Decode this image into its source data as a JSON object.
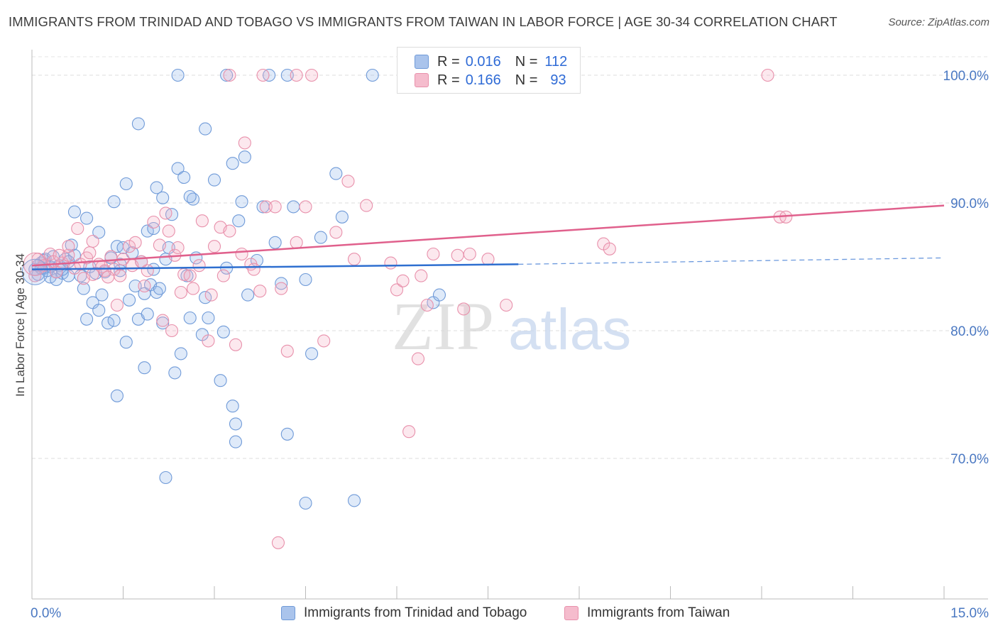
{
  "title": "IMMIGRANTS FROM TRINIDAD AND TOBAGO VS IMMIGRANTS FROM TAIWAN IN LABOR FORCE | AGE 30-34 CORRELATION CHART",
  "source": "Source: ZipAtlas.com",
  "watermark": {
    "zip": "ZIP",
    "atlas": "atlas"
  },
  "legend": {
    "rows": [
      {
        "r_label": "R =",
        "r_value": "0.016",
        "n_label": "N =",
        "n_value": "112",
        "color": "#aac4ec",
        "border": "#6f9ad8"
      },
      {
        "r_label": "R =",
        "r_value": "0.166",
        "n_label": "N =",
        "n_value": "93",
        "color": "#f5bccd",
        "border": "#e890ab"
      }
    ]
  },
  "bottom_legend": [
    {
      "label": "Immigrants from Trinidad and Tobago",
      "color": "#aac4ec",
      "border": "#6f9ad8"
    },
    {
      "label": "Immigrants from Taiwan",
      "color": "#f5bccd",
      "border": "#e890ab"
    }
  ],
  "chart_data": {
    "type": "scatter",
    "title": "IMMIGRANTS FROM TRINIDAD AND TOBAGO VS IMMIGRANTS FROM TAIWAN IN LABOR FORCE | AGE 30-34 CORRELATION CHART",
    "xlabel": "",
    "ylabel": "In Labor Force | Age 30-34",
    "xlim": [
      0,
      15
    ],
    "ylim": [
      59,
      102
    ],
    "x_tick_labels": [
      "0.0%",
      "15.0%"
    ],
    "y_ticks": [
      {
        "value": 70,
        "label": "70.0%"
      },
      {
        "value": 80,
        "label": "80.0%"
      },
      {
        "value": 90,
        "label": "90.0%"
      },
      {
        "value": 100,
        "label": "100.0%"
      }
    ],
    "grid": "horizontal-dashed",
    "series": [
      {
        "name": "Immigrants from Trinidad and Tobago",
        "color": "#6f9ad8",
        "fill": "rgba(150,185,235,0.30)",
        "line_color": "#2e6fd0",
        "trend": {
          "x": [
            0.0,
            8.0
          ],
          "y": [
            84.8,
            85.2
          ]
        },
        "trend_dashed": {
          "x": [
            8.0,
            15.0
          ],
          "y": [
            85.2,
            85.7
          ]
        },
        "points": [
          [
            0.05,
            84.8
          ],
          [
            0.1,
            84.4
          ],
          [
            0.15,
            85.3
          ],
          [
            0.2,
            84.9
          ],
          [
            0.22,
            85.6
          ],
          [
            0.3,
            84.2
          ],
          [
            0.35,
            85.8
          ],
          [
            0.4,
            84.0
          ],
          [
            0.45,
            85.1
          ],
          [
            0.5,
            84.5
          ],
          [
            0.55,
            85.6
          ],
          [
            0.6,
            84.3
          ],
          [
            0.65,
            86.7
          ],
          [
            0.7,
            85.9
          ],
          [
            0.8,
            84.3
          ],
          [
            0.85,
            83.3
          ],
          [
            0.9,
            80.9
          ],
          [
            0.95,
            85.0
          ],
          [
            1.0,
            82.2
          ],
          [
            1.05,
            84.5
          ],
          [
            1.1,
            81.6
          ],
          [
            1.15,
            82.8
          ],
          [
            1.2,
            84.6
          ],
          [
            1.25,
            80.6
          ],
          [
            1.3,
            85.7
          ],
          [
            1.35,
            80.8
          ],
          [
            1.4,
            86.6
          ],
          [
            1.45,
            85.2
          ],
          [
            1.5,
            86.5
          ],
          [
            1.55,
            79.1
          ],
          [
            1.6,
            82.4
          ],
          [
            1.65,
            86.1
          ],
          [
            1.7,
            83.5
          ],
          [
            1.75,
            80.9
          ],
          [
            1.8,
            85.4
          ],
          [
            1.85,
            82.9
          ],
          [
            1.9,
            81.3
          ],
          [
            1.95,
            83.6
          ],
          [
            2.0,
            84.8
          ],
          [
            2.05,
            83.0
          ],
          [
            2.1,
            83.3
          ],
          [
            2.15,
            80.6
          ],
          [
            2.2,
            85.6
          ],
          [
            2.25,
            86.5
          ],
          [
            2.3,
            89.1
          ],
          [
            2.35,
            76.7
          ],
          [
            2.4,
            92.7
          ],
          [
            2.45,
            78.2
          ],
          [
            2.55,
            84.3
          ],
          [
            2.6,
            81.0
          ],
          [
            2.65,
            90.3
          ],
          [
            2.7,
            85.7
          ],
          [
            2.8,
            79.7
          ],
          [
            2.85,
            82.6
          ],
          [
            2.9,
            81.0
          ],
          [
            3.0,
            91.8
          ],
          [
            3.1,
            76.1
          ],
          [
            3.15,
            79.9
          ],
          [
            3.2,
            84.9
          ],
          [
            3.3,
            74.1
          ],
          [
            3.35,
            72.7
          ],
          [
            3.4,
            88.6
          ],
          [
            3.45,
            90.1
          ],
          [
            3.5,
            93.6
          ],
          [
            3.55,
            82.8
          ],
          [
            3.7,
            85.5
          ],
          [
            3.8,
            89.7
          ],
          [
            4.0,
            86.9
          ],
          [
            4.1,
            83.7
          ],
          [
            4.2,
            71.9
          ],
          [
            4.3,
            89.7
          ],
          [
            4.5,
            84.0
          ],
          [
            4.6,
            78.2
          ],
          [
            4.75,
            87.3
          ],
          [
            5.0,
            92.3
          ],
          [
            5.1,
            88.9
          ],
          [
            5.6,
            100.0
          ],
          [
            6.6,
            82.2
          ],
          [
            6.7,
            82.8
          ],
          [
            1.1,
            87.7
          ],
          [
            1.35,
            90.1
          ],
          [
            1.55,
            91.5
          ],
          [
            1.75,
            96.2
          ],
          [
            1.9,
            87.8
          ],
          [
            2.05,
            91.2
          ],
          [
            2.15,
            90.4
          ],
          [
            2.4,
            100.0
          ],
          [
            2.5,
            92.0
          ],
          [
            2.6,
            90.5
          ],
          [
            2.85,
            95.8
          ],
          [
            3.2,
            100.0
          ],
          [
            3.3,
            93.1
          ],
          [
            3.35,
            71.3
          ],
          [
            4.2,
            100.0
          ],
          [
            4.5,
            66.5
          ],
          [
            5.3,
            66.7
          ],
          [
            2.2,
            68.5
          ],
          [
            1.4,
            74.9
          ],
          [
            1.85,
            77.1
          ],
          [
            0.7,
            89.3
          ],
          [
            0.9,
            88.8
          ],
          [
            1.45,
            84.7
          ],
          [
            0.4,
            84.6
          ],
          [
            0.5,
            84.8
          ],
          [
            0.6,
            85.4
          ],
          [
            0.3,
            85.0
          ],
          [
            0.25,
            84.7
          ],
          [
            0.2,
            85.5
          ],
          [
            0.15,
            84.9
          ],
          [
            0.1,
            85.1
          ],
          [
            2.0,
            88.0
          ],
          [
            3.9,
            100.0
          ]
        ]
      },
      {
        "name": "Immigrants from Taiwan",
        "color": "#e890ab",
        "fill": "rgba(245,180,200,0.30)",
        "line_color": "#e0608c",
        "trend": {
          "x": [
            0.0,
            15.0
          ],
          "y": [
            85.1,
            89.8
          ]
        },
        "points": [
          [
            0.05,
            84.3
          ],
          [
            0.1,
            85.6
          ],
          [
            0.2,
            85.1
          ],
          [
            0.3,
            86.0
          ],
          [
            0.4,
            84.6
          ],
          [
            0.5,
            85.3
          ],
          [
            0.6,
            85.9
          ],
          [
            0.7,
            84.9
          ],
          [
            0.75,
            88.0
          ],
          [
            0.8,
            85.2
          ],
          [
            0.9,
            85.7
          ],
          [
            0.95,
            86.1
          ],
          [
            1.0,
            84.4
          ],
          [
            1.1,
            85.2
          ],
          [
            1.15,
            85.0
          ],
          [
            1.2,
            84.7
          ],
          [
            1.3,
            85.8
          ],
          [
            1.35,
            84.8
          ],
          [
            1.4,
            82.0
          ],
          [
            1.45,
            84.3
          ],
          [
            1.5,
            85.6
          ],
          [
            1.6,
            86.6
          ],
          [
            1.65,
            85.1
          ],
          [
            1.7,
            86.9
          ],
          [
            1.8,
            85.4
          ],
          [
            1.85,
            83.5
          ],
          [
            1.9,
            84.7
          ],
          [
            2.0,
            88.5
          ],
          [
            2.1,
            86.7
          ],
          [
            2.15,
            80.8
          ],
          [
            2.2,
            89.2
          ],
          [
            2.25,
            87.8
          ],
          [
            2.3,
            80.0
          ],
          [
            2.35,
            85.9
          ],
          [
            2.4,
            86.5
          ],
          [
            2.5,
            84.4
          ],
          [
            2.6,
            84.3
          ],
          [
            2.65,
            83.3
          ],
          [
            2.75,
            85.1
          ],
          [
            2.8,
            88.6
          ],
          [
            2.9,
            79.2
          ],
          [
            2.95,
            82.8
          ],
          [
            3.0,
            86.6
          ],
          [
            3.1,
            88.1
          ],
          [
            3.15,
            84.3
          ],
          [
            3.25,
            87.8
          ],
          [
            3.35,
            78.9
          ],
          [
            3.45,
            86.0
          ],
          [
            3.5,
            94.7
          ],
          [
            3.6,
            85.2
          ],
          [
            3.65,
            84.8
          ],
          [
            3.75,
            83.1
          ],
          [
            3.85,
            89.7
          ],
          [
            4.0,
            89.7
          ],
          [
            4.1,
            83.3
          ],
          [
            4.2,
            78.4
          ],
          [
            4.35,
            86.9
          ],
          [
            4.5,
            89.7
          ],
          [
            4.6,
            100.0
          ],
          [
            4.8,
            79.2
          ],
          [
            5.0,
            87.7
          ],
          [
            5.2,
            91.7
          ],
          [
            5.3,
            85.6
          ],
          [
            5.5,
            89.8
          ],
          [
            5.9,
            85.3
          ],
          [
            6.0,
            83.2
          ],
          [
            6.1,
            83.9
          ],
          [
            6.2,
            72.1
          ],
          [
            6.35,
            77.8
          ],
          [
            6.4,
            84.3
          ],
          [
            6.5,
            82.0
          ],
          [
            6.6,
            86.0
          ],
          [
            7.0,
            85.9
          ],
          [
            7.1,
            81.7
          ],
          [
            7.2,
            86.0
          ],
          [
            7.5,
            85.6
          ],
          [
            7.8,
            82.0
          ],
          [
            9.4,
            86.8
          ],
          [
            9.5,
            86.4
          ],
          [
            12.1,
            100.0
          ],
          [
            12.3,
            88.9
          ],
          [
            12.4,
            88.9
          ],
          [
            4.05,
            63.4
          ],
          [
            3.8,
            100.0
          ],
          [
            4.35,
            100.0
          ],
          [
            3.25,
            100.0
          ],
          [
            1.0,
            87.0
          ],
          [
            0.6,
            86.6
          ],
          [
            1.25,
            84.2
          ],
          [
            2.45,
            83.0
          ],
          [
            0.35,
            85.4
          ],
          [
            0.45,
            85.9
          ],
          [
            0.85,
            84.1
          ]
        ]
      }
    ]
  }
}
